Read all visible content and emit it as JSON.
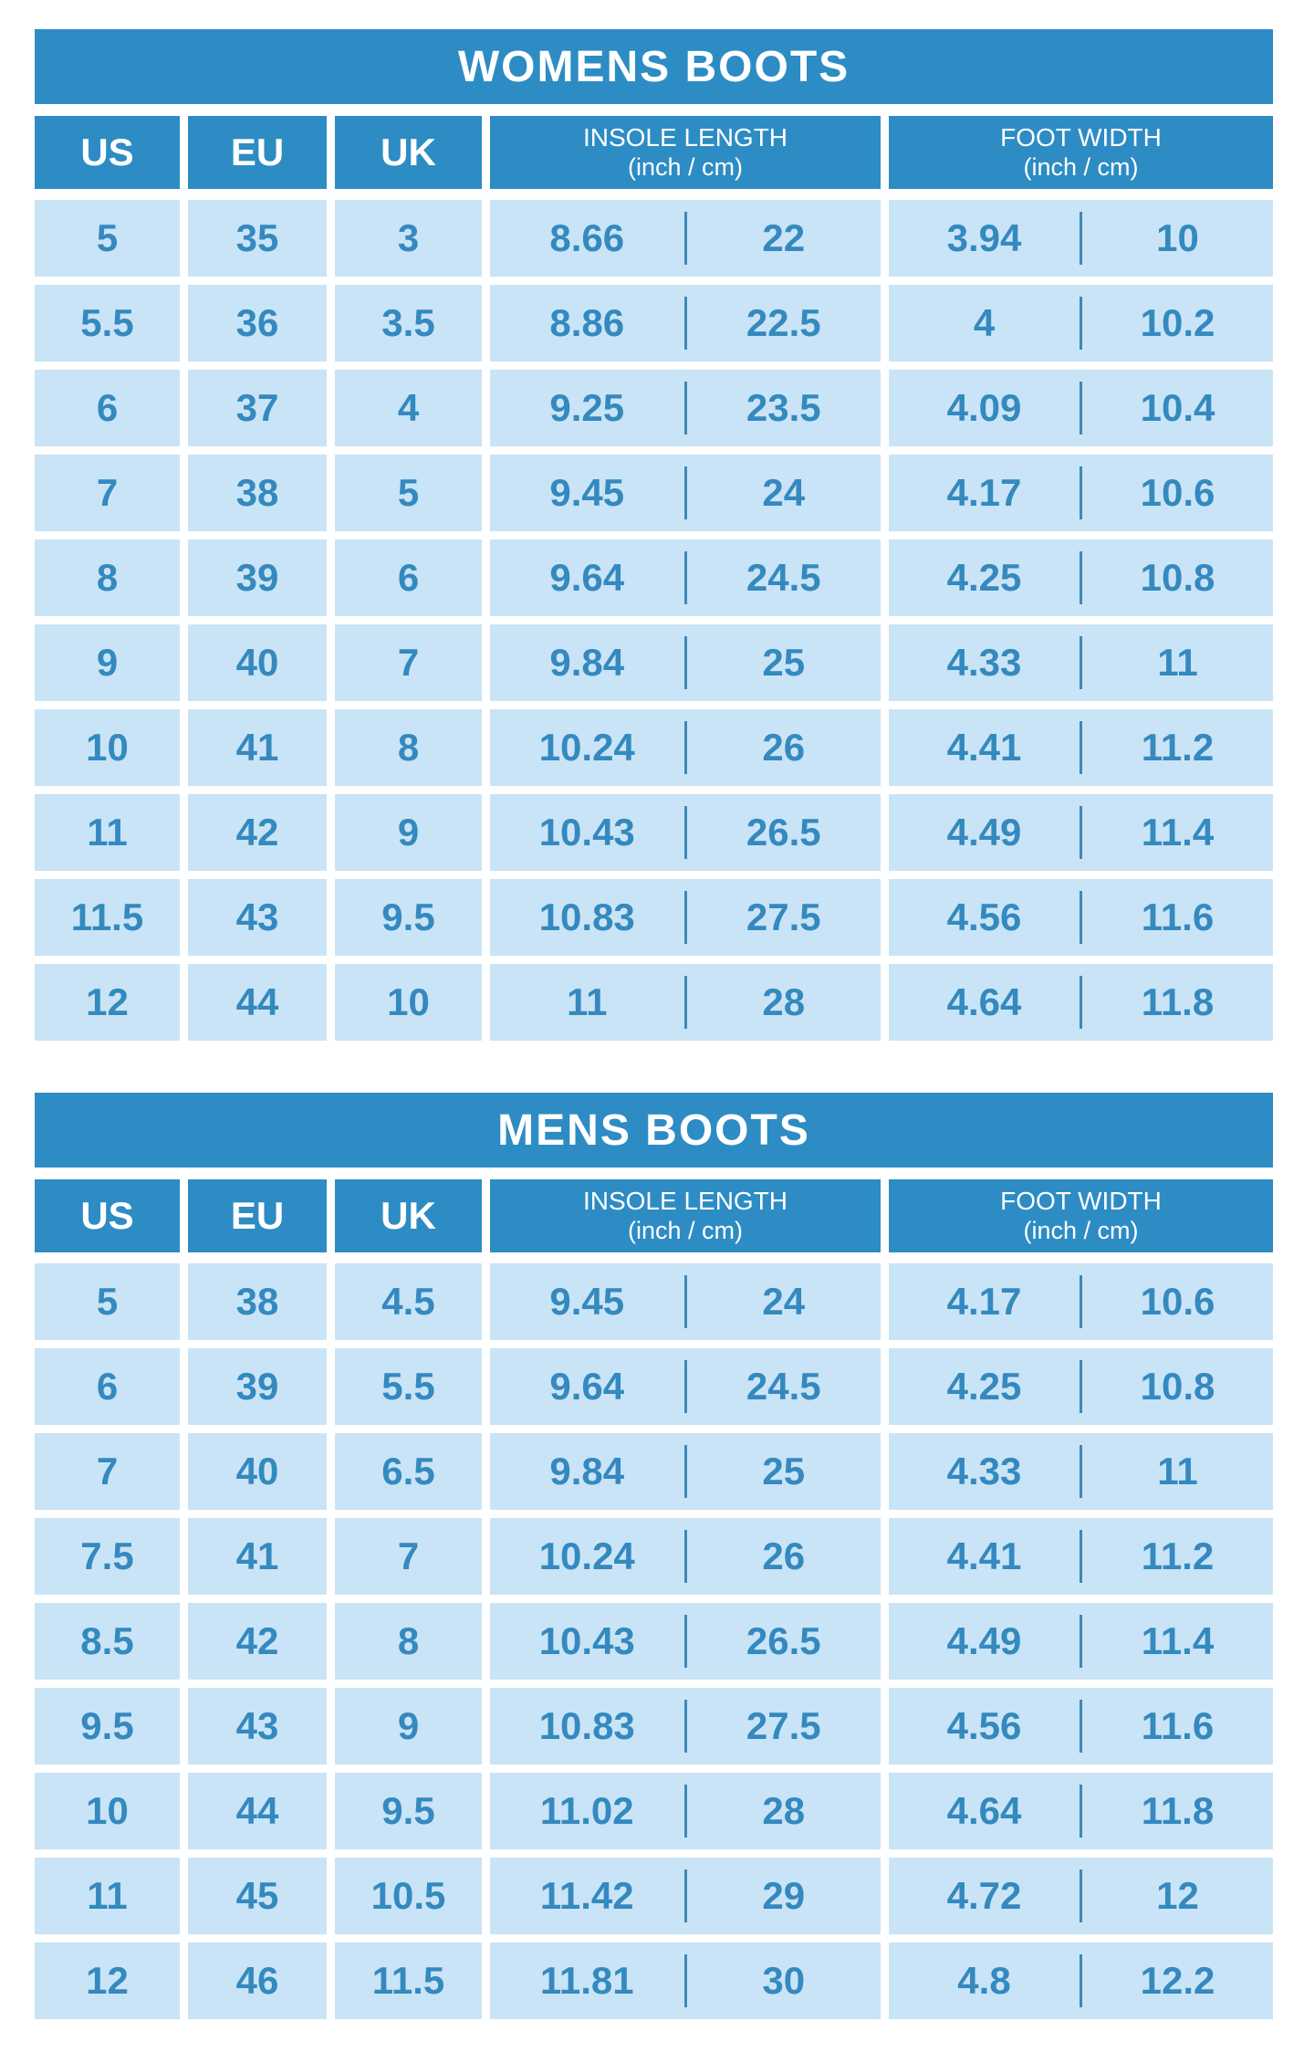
{
  "colors": {
    "header_blue": "#2D8CC4",
    "row_background_light_blue": "#C9E4F6",
    "value_text_blue": "#3489BF",
    "divider_blue": "#3E88B8",
    "title_text_white": "#FFFFFF"
  },
  "tables": [
    {
      "title": "WOMENS BOOTS",
      "columns": {
        "us": "US",
        "eu": "EU",
        "uk": "UK",
        "insole": {
          "line1": "INSOLE LENGTH",
          "line2": "(inch / cm)"
        },
        "foot": {
          "line1": "FOOT WIDTH",
          "line2": "(inch / cm)"
        }
      },
      "rows": [
        {
          "us": "5",
          "eu": "35",
          "uk": "3",
          "insole_in": "8.66",
          "insole_cm": "22",
          "width_in": "3.94",
          "width_cm": "10"
        },
        {
          "us": "5.5",
          "eu": "36",
          "uk": "3.5",
          "insole_in": "8.86",
          "insole_cm": "22.5",
          "width_in": "4",
          "width_cm": "10.2"
        },
        {
          "us": "6",
          "eu": "37",
          "uk": "4",
          "insole_in": "9.25",
          "insole_cm": "23.5",
          "width_in": "4.09",
          "width_cm": "10.4"
        },
        {
          "us": "7",
          "eu": "38",
          "uk": "5",
          "insole_in": "9.45",
          "insole_cm": "24",
          "width_in": "4.17",
          "width_cm": "10.6"
        },
        {
          "us": "8",
          "eu": "39",
          "uk": "6",
          "insole_in": "9.64",
          "insole_cm": "24.5",
          "width_in": "4.25",
          "width_cm": "10.8"
        },
        {
          "us": "9",
          "eu": "40",
          "uk": "7",
          "insole_in": "9.84",
          "insole_cm": "25",
          "width_in": "4.33",
          "width_cm": "11"
        },
        {
          "us": "10",
          "eu": "41",
          "uk": "8",
          "insole_in": "10.24",
          "insole_cm": "26",
          "width_in": "4.41",
          "width_cm": "11.2"
        },
        {
          "us": "11",
          "eu": "42",
          "uk": "9",
          "insole_in": "10.43",
          "insole_cm": "26.5",
          "width_in": "4.49",
          "width_cm": "11.4"
        },
        {
          "us": "11.5",
          "eu": "43",
          "uk": "9.5",
          "insole_in": "10.83",
          "insole_cm": "27.5",
          "width_in": "4.56",
          "width_cm": "11.6"
        },
        {
          "us": "12",
          "eu": "44",
          "uk": "10",
          "insole_in": "11",
          "insole_cm": "28",
          "width_in": "4.64",
          "width_cm": "11.8"
        }
      ]
    },
    {
      "title": "MENS BOOTS",
      "columns": {
        "us": "US",
        "eu": "EU",
        "uk": "UK",
        "insole": {
          "line1": "INSOLE LENGTH",
          "line2": "(inch / cm)"
        },
        "foot": {
          "line1": "FOOT WIDTH",
          "line2": "(inch / cm)"
        }
      },
      "rows": [
        {
          "us": "5",
          "eu": "38",
          "uk": "4.5",
          "insole_in": "9.45",
          "insole_cm": "24",
          "width_in": "4.17",
          "width_cm": "10.6"
        },
        {
          "us": "6",
          "eu": "39",
          "uk": "5.5",
          "insole_in": "9.64",
          "insole_cm": "24.5",
          "width_in": "4.25",
          "width_cm": "10.8"
        },
        {
          "us": "7",
          "eu": "40",
          "uk": "6.5",
          "insole_in": "9.84",
          "insole_cm": "25",
          "width_in": "4.33",
          "width_cm": "11"
        },
        {
          "us": "7.5",
          "eu": "41",
          "uk": "7",
          "insole_in": "10.24",
          "insole_cm": "26",
          "width_in": "4.41",
          "width_cm": "11.2"
        },
        {
          "us": "8.5",
          "eu": "42",
          "uk": "8",
          "insole_in": "10.43",
          "insole_cm": "26.5",
          "width_in": "4.49",
          "width_cm": "11.4"
        },
        {
          "us": "9.5",
          "eu": "43",
          "uk": "9",
          "insole_in": "10.83",
          "insole_cm": "27.5",
          "width_in": "4.56",
          "width_cm": "11.6"
        },
        {
          "us": "10",
          "eu": "44",
          "uk": "9.5",
          "insole_in": "11.02",
          "insole_cm": "28",
          "width_in": "4.64",
          "width_cm": "11.8"
        },
        {
          "us": "11",
          "eu": "45",
          "uk": "10.5",
          "insole_in": "11.42",
          "insole_cm": "29",
          "width_in": "4.72",
          "width_cm": "12"
        },
        {
          "us": "12",
          "eu": "46",
          "uk": "11.5",
          "insole_in": "11.81",
          "insole_cm": "30",
          "width_in": "4.8",
          "width_cm": "12.2"
        }
      ]
    }
  ]
}
